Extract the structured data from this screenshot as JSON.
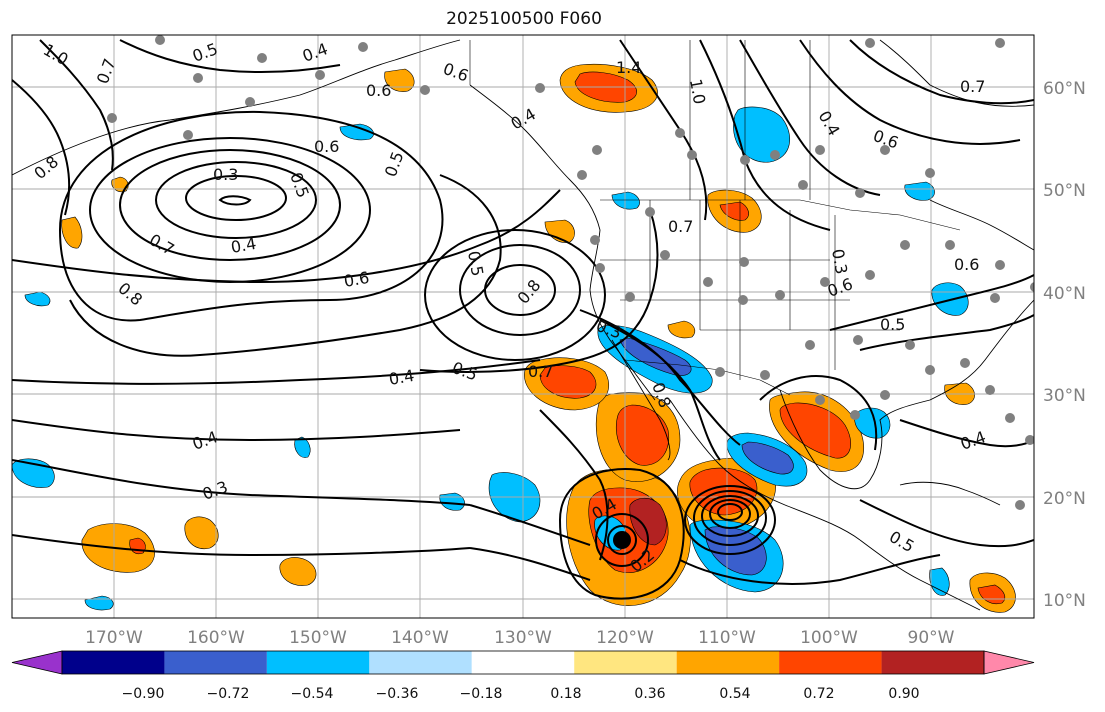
{
  "title": "2025100500 F060",
  "lon_labels": [
    "170°W",
    "160°W",
    "150°W",
    "140°W",
    "130°W",
    "120°W",
    "110°W",
    "100°W",
    "90°W"
  ],
  "lat_labels": [
    "60°N",
    "50°N",
    "40°N",
    "30°N",
    "20°N",
    "10°N"
  ],
  "colorbar": {
    "colors": [
      "#9932cc",
      "#00008b",
      "#3a5fcd",
      "#00bfff",
      "#b0e0ff",
      "#ffffff",
      "#ffe680",
      "#ffa500",
      "#ff4500",
      "#b22222",
      "#ff88aa"
    ],
    "tick_labels": [
      "−0.90",
      "−0.72",
      "−0.54",
      "−0.36",
      "−0.18",
      "0.18",
      "0.36",
      "0.54",
      "0.72",
      "0.90"
    ]
  },
  "contour_labels": [
    "1.0",
    "0.5",
    "0.7",
    "0.4",
    "0.6",
    "0.3",
    "0.5",
    "0.8",
    "0.7",
    "0.4",
    "0.6",
    "0.8",
    "0.5",
    "0.4",
    "0.5",
    "0.6",
    "0.4",
    "0.3",
    "0.2",
    "0.4",
    "0.8",
    "1.4",
    "1.0",
    "0.6",
    "0.4",
    "0.7",
    "0.6",
    "0.5",
    "0.7",
    "0.3",
    "0.6",
    "0.5",
    "0.8",
    "0.3",
    "0.4",
    "0.6",
    "0.7",
    "0.4",
    "0.5"
  ],
  "marker": "storm-center"
}
